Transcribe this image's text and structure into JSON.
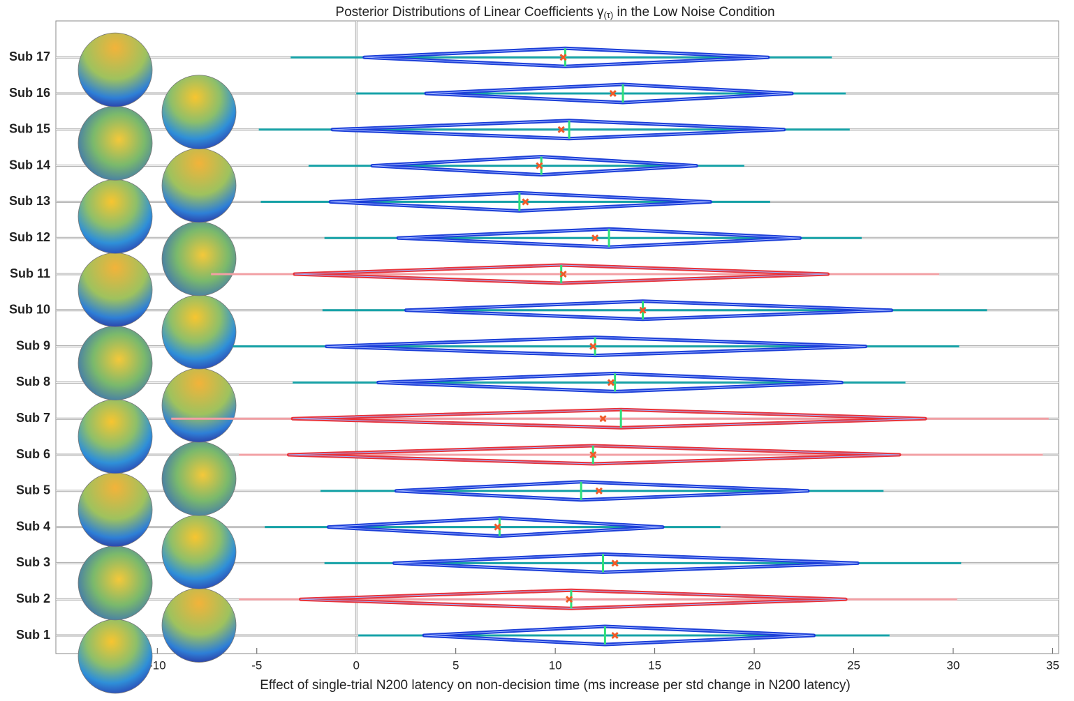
{
  "chart_data": {
    "type": "interval",
    "title_parts": [
      "Posterior Distributions of Linear Coefficients γ",
      "(τ)",
      " in the Low Noise Condition"
    ],
    "x_label": "Effect of single-trial N200 latency on non-decision time (ms increase per std change in N200 latency)",
    "categories": [
      "Sub 1",
      "Sub 2",
      "Sub 3",
      "Sub 4",
      "Sub 5",
      "Sub 6",
      "Sub 7",
      "Sub 8",
      "Sub 9",
      "Sub 10",
      "Sub 11",
      "Sub 12",
      "Sub 13",
      "Sub 14",
      "Sub 15",
      "Sub 16",
      "Sub 17"
    ],
    "outer_low": [
      0.1,
      -5.9,
      -1.6,
      -4.6,
      -1.8,
      -5.9,
      -9.3,
      -3.2,
      -6.2,
      -1.7,
      -7.3,
      -1.6,
      -4.8,
      -2.4,
      -4.9,
      0.0,
      -3.3
    ],
    "outer_high": [
      26.8,
      30.2,
      30.4,
      18.3,
      26.5,
      34.5,
      34.8,
      27.6,
      30.3,
      31.7,
      29.3,
      25.4,
      20.8,
      19.5,
      24.8,
      24.6,
      23.9
    ],
    "inner_low": [
      3.4,
      -2.8,
      1.9,
      -1.4,
      2.0,
      -3.4,
      -3.2,
      1.1,
      -1.5,
      2.5,
      -3.1,
      2.1,
      -1.3,
      0.8,
      -1.2,
      3.5,
      0.4
    ],
    "inner_high": [
      23.0,
      24.6,
      25.2,
      15.4,
      22.7,
      27.3,
      28.6,
      24.4,
      25.6,
      26.9,
      23.7,
      22.3,
      17.8,
      17.1,
      21.5,
      21.9,
      20.7
    ],
    "median": [
      12.5,
      10.8,
      12.4,
      7.2,
      11.3,
      11.9,
      13.3,
      13.0,
      12.0,
      14.4,
      10.3,
      12.7,
      8.2,
      9.3,
      10.7,
      13.4,
      10.5
    ],
    "mean": [
      13.0,
      10.7,
      13.0,
      7.1,
      12.2,
      11.9,
      12.4,
      12.8,
      11.9,
      14.4,
      10.4,
      12.0,
      8.5,
      9.2,
      10.3,
      12.9,
      10.4
    ],
    "colors": [
      "#1c3fd8",
      "#e8333a",
      "#1c3fd8",
      "#1c3fd8",
      "#1c3fd8",
      "#e8333a",
      "#e8333a",
      "#1c3fd8",
      "#1c3fd8",
      "#1c3fd8",
      "#e8333a",
      "#1c3fd8",
      "#1c3fd8",
      "#1c3fd8",
      "#1c3fd8",
      "#1c3fd8",
      "#1c3fd8"
    ],
    "whisker_colors": [
      "#17a3a8",
      "#f2a0a4",
      "#17a3a8",
      "#17a3a8",
      "#17a3a8",
      "#f2a0a4",
      "#f2a0a4",
      "#17a3a8",
      "#17a3a8",
      "#17a3a8",
      "#f2a0a4",
      "#17a3a8",
      "#17a3a8",
      "#17a3a8",
      "#17a3a8",
      "#17a3a8",
      "#17a3a8"
    ],
    "median_color": "#2ee07a",
    "mean_color": "#f05a28",
    "xlim": [
      -15.1,
      35.3
    ],
    "xticks": [
      -10,
      -5,
      0,
      5,
      10,
      15,
      20,
      25,
      30,
      35
    ],
    "grid": true
  }
}
